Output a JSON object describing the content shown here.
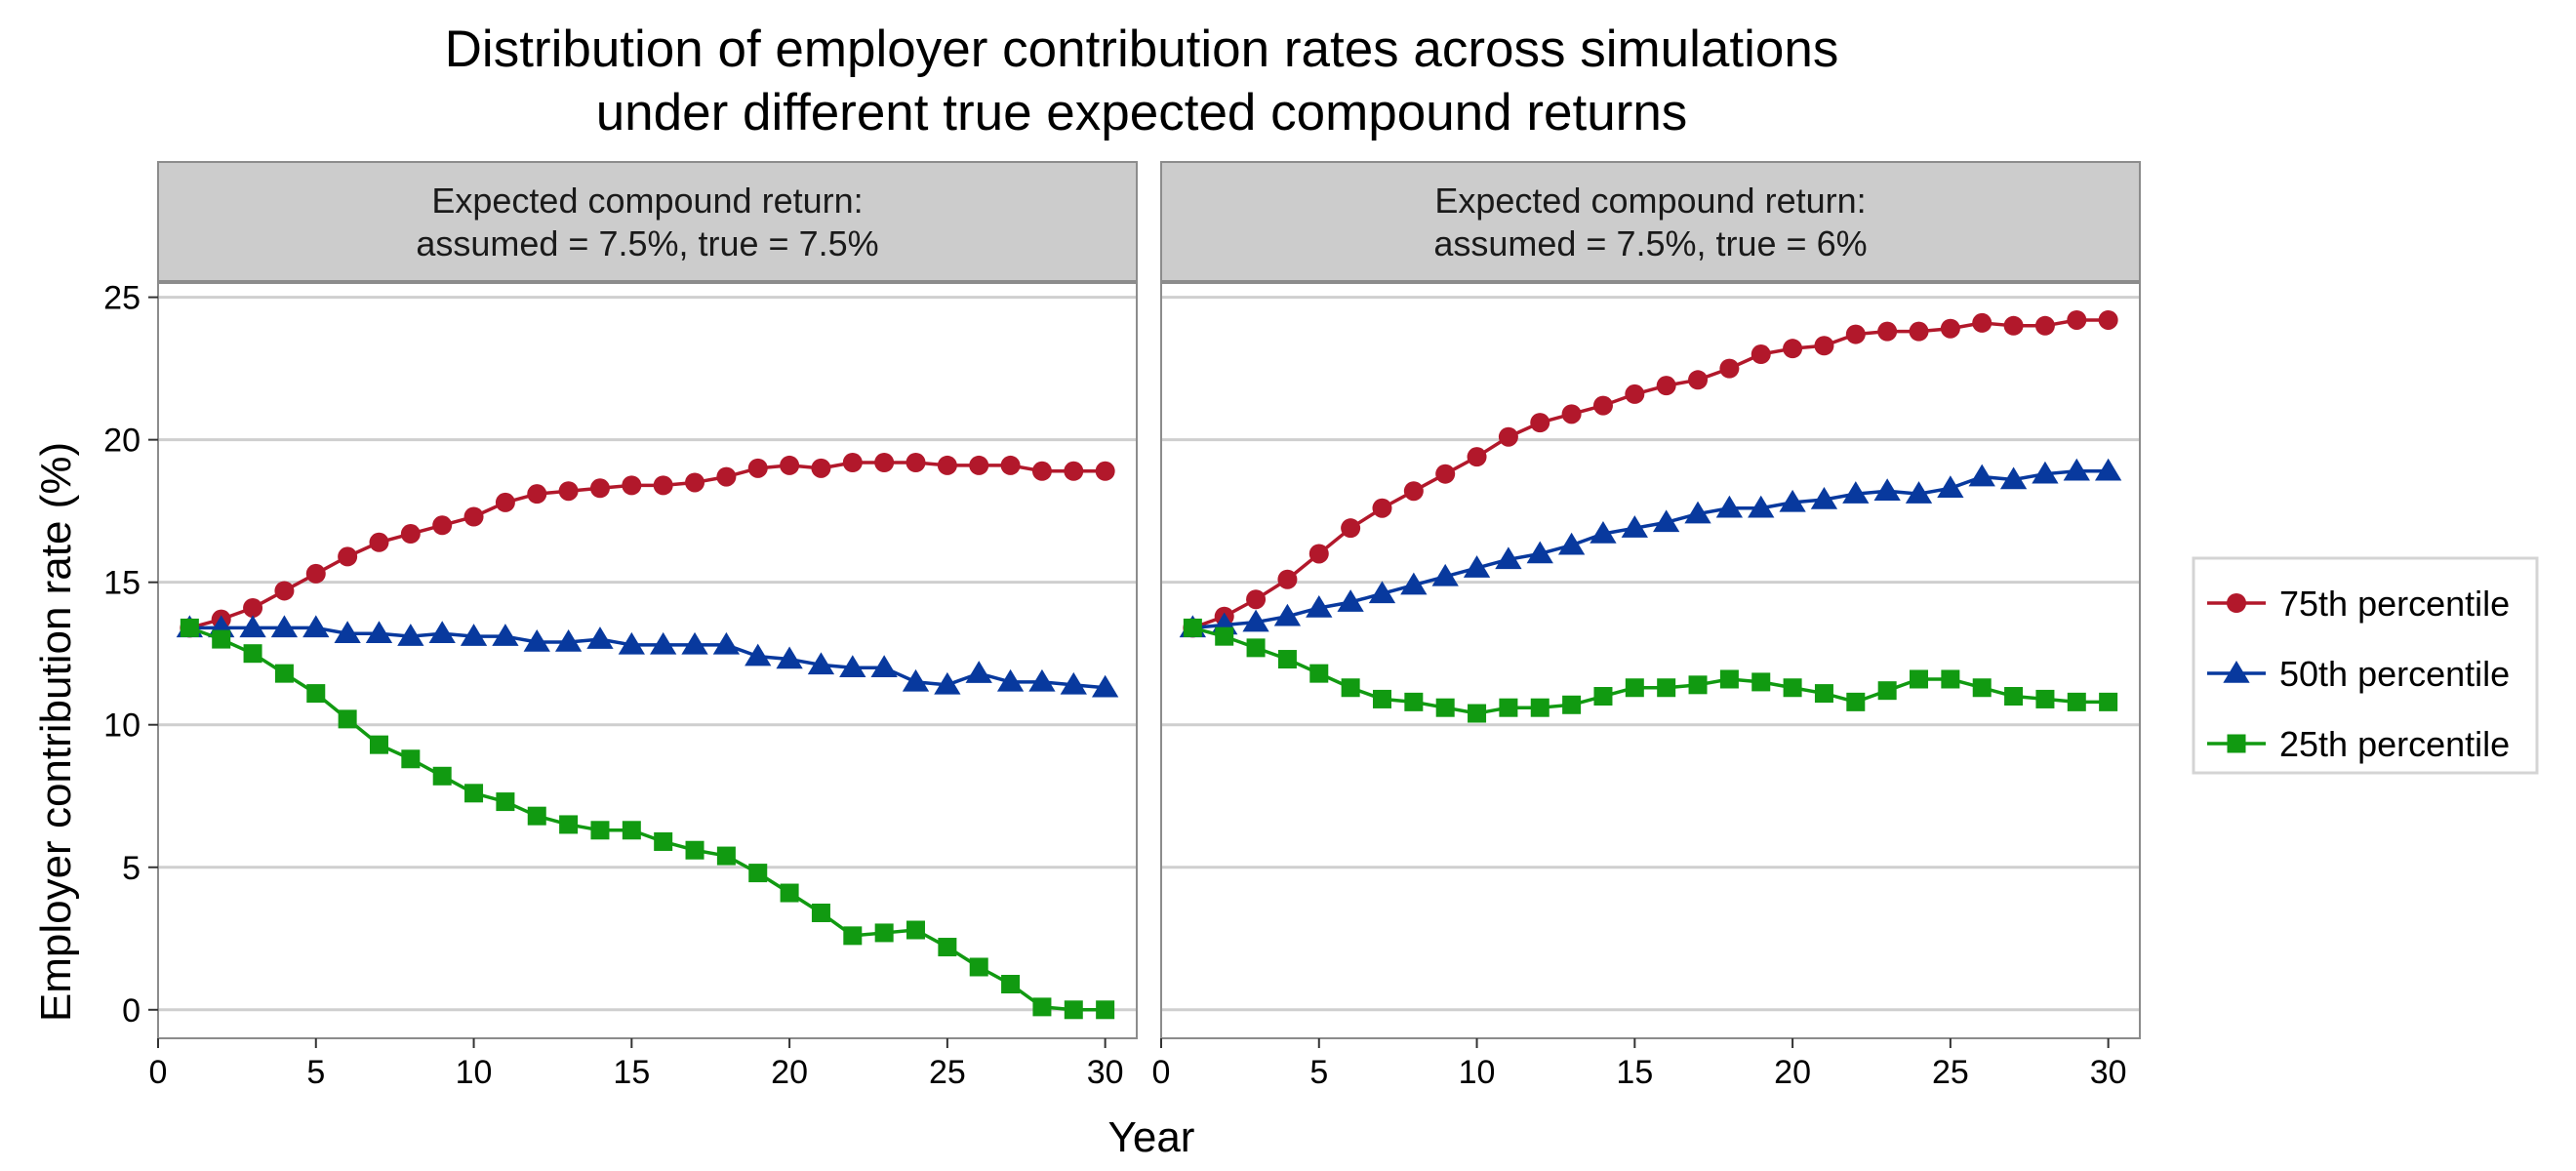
{
  "chart_data": {
    "type": "line",
    "title_lines": [
      "Distribution of employer contribution rates across simulations",
      "under different true expected compound returns"
    ],
    "xlabel": "Year",
    "ylabel": "Employer contribution rate (%)",
    "xlim": [
      0,
      31
    ],
    "ylim": [
      -1,
      25.5
    ],
    "xticks": [
      "0",
      "5",
      "10",
      "15",
      "20",
      "25",
      "30"
    ],
    "yticks": [
      "0",
      "5",
      "10",
      "15",
      "20",
      "25"
    ],
    "grid": true,
    "legend_position": "right",
    "x": [
      1,
      2,
      3,
      4,
      5,
      6,
      7,
      8,
      9,
      10,
      11,
      12,
      13,
      14,
      15,
      16,
      17,
      18,
      19,
      20,
      21,
      22,
      23,
      24,
      25,
      26,
      27,
      28,
      29,
      30
    ],
    "series_styles": [
      {
        "name": "75th percentile",
        "color": "#b2182b",
        "marker": "circle"
      },
      {
        "name": "50th percentile",
        "color": "#08399e",
        "marker": "triangle"
      },
      {
        "name": "25th percentile",
        "color": "#119a11",
        "marker": "square"
      }
    ],
    "panels": [
      {
        "strip_line1": "Expected compound return:",
        "strip_line2": "assumed = 7.5%, true = 7.5%",
        "series": [
          {
            "name": "75th percentile",
            "values": [
              13.4,
              13.7,
              14.1,
              14.7,
              15.3,
              15.9,
              16.4,
              16.7,
              17.0,
              17.3,
              17.8,
              18.1,
              18.2,
              18.3,
              18.4,
              18.4,
              18.5,
              18.7,
              19.0,
              19.1,
              19.0,
              19.2,
              19.2,
              19.2,
              19.1,
              19.1,
              19.1,
              18.9,
              18.9,
              18.9
            ]
          },
          {
            "name": "50th percentile",
            "values": [
              13.4,
              13.4,
              13.4,
              13.4,
              13.4,
              13.2,
              13.2,
              13.1,
              13.2,
              13.1,
              13.1,
              12.9,
              12.9,
              13.0,
              12.8,
              12.8,
              12.8,
              12.8,
              12.4,
              12.3,
              12.1,
              12.0,
              12.0,
              11.5,
              11.4,
              11.8,
              11.5,
              11.5,
              11.4,
              11.3
            ]
          },
          {
            "name": "25th percentile",
            "values": [
              13.4,
              13.0,
              12.5,
              11.8,
              11.1,
              10.2,
              9.3,
              8.8,
              8.2,
              7.6,
              7.3,
              6.8,
              6.5,
              6.3,
              6.3,
              5.9,
              5.6,
              5.4,
              4.8,
              4.1,
              3.4,
              2.6,
              2.7,
              2.8,
              2.2,
              1.5,
              0.9,
              0.1,
              0.0,
              0.0
            ]
          }
        ]
      },
      {
        "strip_line1": "Expected compound return:",
        "strip_line2": "assumed = 7.5%, true = 6%",
        "series": [
          {
            "name": "75th percentile",
            "values": [
              13.4,
              13.8,
              14.4,
              15.1,
              16.0,
              16.9,
              17.6,
              18.2,
              18.8,
              19.4,
              20.1,
              20.6,
              20.9,
              21.2,
              21.6,
              21.9,
              22.1,
              22.5,
              23.0,
              23.2,
              23.3,
              23.7,
              23.8,
              23.8,
              23.9,
              24.1,
              24.0,
              24.0,
              24.2,
              24.2
            ]
          },
          {
            "name": "50th percentile",
            "values": [
              13.4,
              13.5,
              13.6,
              13.8,
              14.1,
              14.3,
              14.6,
              14.9,
              15.2,
              15.5,
              15.8,
              16.0,
              16.3,
              16.7,
              16.9,
              17.1,
              17.4,
              17.6,
              17.6,
              17.8,
              17.9,
              18.1,
              18.2,
              18.1,
              18.3,
              18.7,
              18.6,
              18.8,
              18.9,
              18.9
            ]
          },
          {
            "name": "25th percentile",
            "values": [
              13.4,
              13.1,
              12.7,
              12.3,
              11.8,
              11.3,
              10.9,
              10.8,
              10.6,
              10.4,
              10.6,
              10.6,
              10.7,
              11.0,
              11.3,
              11.3,
              11.4,
              11.6,
              11.5,
              11.3,
              11.1,
              10.8,
              11.2,
              11.6,
              11.6,
              11.3,
              11.0,
              10.9,
              10.8,
              10.8
            ]
          }
        ]
      }
    ]
  }
}
